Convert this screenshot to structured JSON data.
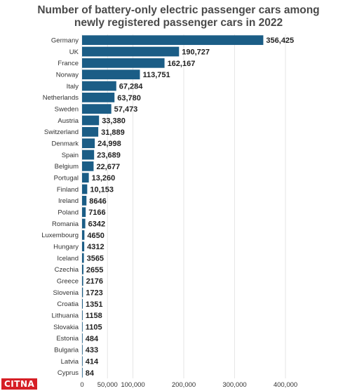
{
  "chart_data": {
    "type": "bar",
    "orientation": "horizontal",
    "title_lines": [
      "Number of battery-only electric passenger cars among",
      "newly registered passenger cars in 2022"
    ],
    "categories": [
      "Germany",
      "UK",
      "France",
      "Norway",
      "Italy",
      "Netherlands",
      "Sweden",
      "Austria",
      "Switzerland",
      "Denmark",
      "Spain",
      "Belgium",
      "Portugal",
      "Finland",
      "Ireland",
      "Poland",
      "Romania",
      "Luxembourg",
      "Hungary",
      "Iceland",
      "Czechia",
      "Greece",
      "Slovenia",
      "Croatia",
      "Lithuania",
      "Slovakia",
      "Estonia",
      "Bulgaria",
      "Latvia",
      "Cyprus"
    ],
    "values": [
      356425,
      190727,
      162167,
      113751,
      67284,
      63780,
      57473,
      33380,
      31889,
      24998,
      23689,
      22677,
      13260,
      10153,
      8646,
      7166,
      6342,
      4650,
      4312,
      3565,
      2655,
      2176,
      1723,
      1351,
      1158,
      1105,
      484,
      433,
      414,
      84
    ],
    "value_labels": [
      "356,425",
      "190,727",
      "162,167",
      "113,751",
      "67,284",
      "63,780",
      "57,473",
      "33,380",
      "31,889",
      "24,998",
      "23,689",
      "22,677",
      "13,260",
      "10,153",
      "8646",
      "7166",
      "6342",
      "4650",
      "4312",
      "3565",
      "2655",
      "2176",
      "1723",
      "1351",
      "1158",
      "1105",
      "484",
      "433",
      "414",
      "84"
    ],
    "x_ticks": [
      0,
      50000,
      100000,
      200000,
      300000,
      400000
    ],
    "x_tick_labels": [
      "0",
      "50,000",
      "100,000",
      "200,000",
      "300,000",
      "400,000"
    ],
    "xlim": [
      0,
      480000
    ],
    "grid": true,
    "bar_color": "#1b5d86"
  },
  "watermark": "CITNA"
}
